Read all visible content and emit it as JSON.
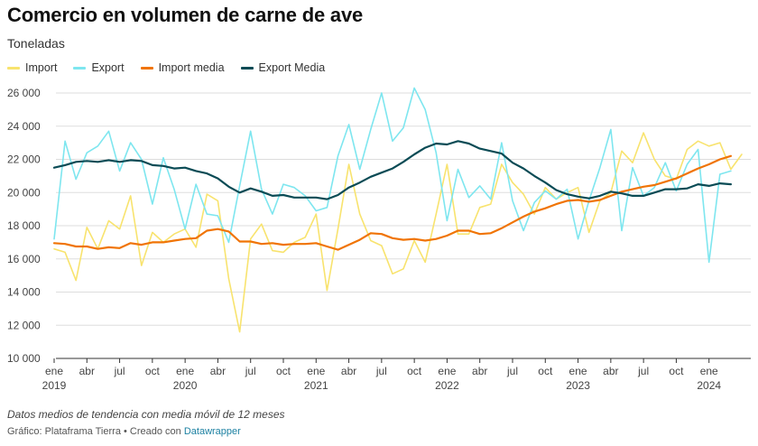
{
  "title": "Comercio en volumen de carne de ave",
  "subtitle": "Toneladas",
  "note": "Datos medios de tendencia con media móvil de 12 meses",
  "footer": {
    "prefix": "Gráfico: Plataframa Tierra • Creado con ",
    "tool": "Datawrapper"
  },
  "colors": {
    "import": "#f8e36e",
    "export": "#7ee6ef",
    "import_media": "#f07405",
    "export_media": "#0a4b55",
    "grid": "#dddddd",
    "axis_text": "#444444"
  },
  "chart_data": {
    "type": "line",
    "x_start": "2019-01",
    "x_frequency": "monthly",
    "ylim": [
      10000,
      26000
    ],
    "yticks": [
      10000,
      12000,
      14000,
      16000,
      18000,
      20000,
      22000,
      24000,
      26000
    ],
    "ytick_labels": [
      "10 000",
      "12 000",
      "14 000",
      "16 000",
      "18 000",
      "20 000",
      "22 000",
      "24 000",
      "26 000"
    ],
    "xticks": [
      {
        "month_index": 0,
        "label": "ene",
        "year": "2019"
      },
      {
        "month_index": 3,
        "label": "abr",
        "year": ""
      },
      {
        "month_index": 6,
        "label": "jul",
        "year": ""
      },
      {
        "month_index": 9,
        "label": "oct",
        "year": ""
      },
      {
        "month_index": 12,
        "label": "ene",
        "year": "2020"
      },
      {
        "month_index": 15,
        "label": "abr",
        "year": ""
      },
      {
        "month_index": 18,
        "label": "jul",
        "year": ""
      },
      {
        "month_index": 21,
        "label": "oct",
        "year": ""
      },
      {
        "month_index": 24,
        "label": "ene",
        "year": "2021"
      },
      {
        "month_index": 27,
        "label": "abr",
        "year": ""
      },
      {
        "month_index": 30,
        "label": "jul",
        "year": ""
      },
      {
        "month_index": 33,
        "label": "oct",
        "year": ""
      },
      {
        "month_index": 36,
        "label": "ene",
        "year": "2022"
      },
      {
        "month_index": 39,
        "label": "abr",
        "year": ""
      },
      {
        "month_index": 42,
        "label": "jul",
        "year": ""
      },
      {
        "month_index": 45,
        "label": "oct",
        "year": ""
      },
      {
        "month_index": 48,
        "label": "ene",
        "year": "2023"
      },
      {
        "month_index": 51,
        "label": "abr",
        "year": ""
      },
      {
        "month_index": 54,
        "label": "jul",
        "year": ""
      },
      {
        "month_index": 57,
        "label": "oct",
        "year": ""
      },
      {
        "month_index": 60,
        "label": "ene",
        "year": "2024"
      }
    ],
    "grid": true,
    "legend_position": "top-left",
    "series": [
      {
        "name": "Import",
        "color_key": "import",
        "values": [
          16600,
          16400,
          14700,
          17900,
          16600,
          18300,
          17800,
          19800,
          15600,
          17600,
          17000,
          17500,
          17800,
          16700,
          19900,
          19500,
          14800,
          11600,
          17200,
          18100,
          16500,
          16400,
          17000,
          17300,
          18700,
          14100,
          17800,
          21700,
          18700,
          17100,
          16800,
          15100,
          15400,
          17100,
          15800,
          18700,
          21700,
          17500,
          17500,
          19100,
          19300,
          21700,
          20600,
          19900,
          18700,
          20300,
          19600,
          20000,
          20300,
          17600,
          19500,
          20000,
          22500,
          21800,
          23600,
          22000,
          21000,
          20800,
          22600,
          23100,
          22800,
          23000,
          21400,
          22300
        ]
      },
      {
        "name": "Export",
        "color_key": "export",
        "values": [
          17200,
          23100,
          20800,
          22400,
          22800,
          23700,
          21300,
          23000,
          22000,
          19300,
          22100,
          20200,
          17800,
          20500,
          18700,
          18600,
          17000,
          20400,
          23700,
          20200,
          18700,
          20500,
          20300,
          19800,
          18900,
          19100,
          22200,
          24100,
          21400,
          23800,
          26000,
          23100,
          23900,
          26300,
          25000,
          22400,
          18300,
          21400,
          19700,
          20400,
          19600,
          23000,
          19500,
          17700,
          19400,
          20100,
          19600,
          20200,
          17200,
          19500,
          21500,
          23800,
          17700,
          21500,
          19800,
          20300,
          21800,
          20100,
          21700,
          22600,
          15800,
          21100,
          21300
        ]
      },
      {
        "name": "Import media",
        "color_key": "import_media",
        "values": [
          16950,
          16900,
          16750,
          16750,
          16600,
          16700,
          16650,
          16950,
          16850,
          17000,
          17000,
          17100,
          17200,
          17250,
          17700,
          17800,
          17650,
          17050,
          17050,
          16900,
          16950,
          16850,
          16900,
          16900,
          16950,
          16750,
          16550,
          16850,
          17150,
          17550,
          17500,
          17250,
          17150,
          17200,
          17100,
          17200,
          17400,
          17700,
          17700,
          17500,
          17550,
          17850,
          18200,
          18550,
          18850,
          19050,
          19300,
          19500,
          19550,
          19450,
          19550,
          19800,
          20050,
          20200,
          20350,
          20450,
          20650,
          20850,
          21150,
          21450,
          21700,
          22000,
          22200
        ]
      },
      {
        "name": "Export Media",
        "color_key": "export_media",
        "values": [
          21500,
          21650,
          21850,
          21900,
          21850,
          21950,
          21850,
          21950,
          21900,
          21650,
          21600,
          21450,
          21500,
          21300,
          21150,
          20850,
          20350,
          20000,
          20250,
          20050,
          19800,
          19850,
          19700,
          19700,
          19700,
          19600,
          19850,
          20300,
          20600,
          20950,
          21200,
          21450,
          21850,
          22300,
          22700,
          22950,
          22900,
          23100,
          22950,
          22650,
          22500,
          22350,
          21800,
          21450,
          21000,
          20600,
          20150,
          19900,
          19750,
          19650,
          19800,
          20050,
          19950,
          19800,
          19800,
          20000,
          20200,
          20200,
          20250,
          20500,
          20400,
          20550,
          20500
        ]
      }
    ]
  }
}
